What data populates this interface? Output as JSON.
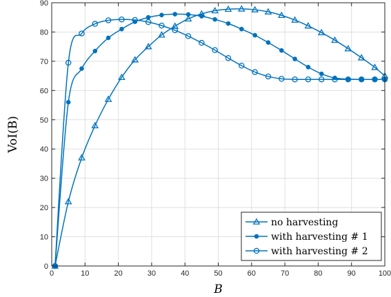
{
  "chart_data": {
    "type": "line",
    "xlabel": "B",
    "ylabel": "VoI(B)",
    "xlim": [
      0,
      100
    ],
    "ylim": [
      0,
      90
    ],
    "xticks": [
      0,
      10,
      20,
      30,
      40,
      50,
      60,
      70,
      80,
      90,
      100
    ],
    "yticks": [
      0,
      10,
      20,
      30,
      40,
      50,
      60,
      70,
      80,
      90
    ],
    "grid": true,
    "legend_position": "bottom-right",
    "color": "#0072bd",
    "series": [
      {
        "name": "no harvesting",
        "marker": "triangle",
        "x": [
          1,
          5,
          9,
          13,
          17,
          21,
          25,
          29,
          33,
          37,
          41,
          45,
          49,
          53,
          57,
          61,
          65,
          69,
          73,
          77,
          81,
          85,
          89,
          93,
          97,
          100
        ],
        "y": [
          0,
          22,
          37,
          48,
          57,
          64.5,
          70.5,
          75,
          79,
          82,
          84.5,
          86.2,
          87.3,
          87.8,
          87.9,
          87.6,
          86.9,
          85.7,
          84.1,
          82.1,
          79.8,
          77.2,
          74.3,
          71.2,
          67.9,
          65
        ]
      },
      {
        "name": "with harvesting # 1",
        "marker": "dot",
        "x": [
          1,
          5,
          9,
          13,
          17,
          21,
          25,
          29,
          33,
          37,
          41,
          45,
          49,
          53,
          57,
          61,
          65,
          69,
          73,
          77,
          81,
          85,
          89,
          93,
          97,
          100
        ],
        "y": [
          0,
          56,
          67.5,
          73.5,
          78,
          81,
          83.5,
          85,
          85.8,
          86.1,
          86,
          85.4,
          84.3,
          82.9,
          81,
          78.9,
          76.4,
          73.7,
          70.8,
          68,
          65.7,
          64.3,
          63.9,
          63.8,
          63.8,
          63.8
        ]
      },
      {
        "name": "with harvesting # 2",
        "marker": "circle",
        "x": [
          1,
          5,
          9,
          13,
          17,
          21,
          25,
          29,
          33,
          37,
          41,
          45,
          49,
          53,
          57,
          61,
          65,
          69,
          73,
          77,
          81,
          85,
          89,
          93,
          97,
          100
        ],
        "y": [
          0,
          69.5,
          79.5,
          82.8,
          84,
          84.3,
          84.1,
          83.4,
          82.2,
          80.6,
          78.6,
          76.3,
          73.8,
          71.1,
          68.5,
          66.3,
          64.8,
          64,
          63.8,
          63.8,
          63.8,
          63.8,
          63.8,
          63.8,
          63.8,
          63.8
        ]
      }
    ]
  }
}
